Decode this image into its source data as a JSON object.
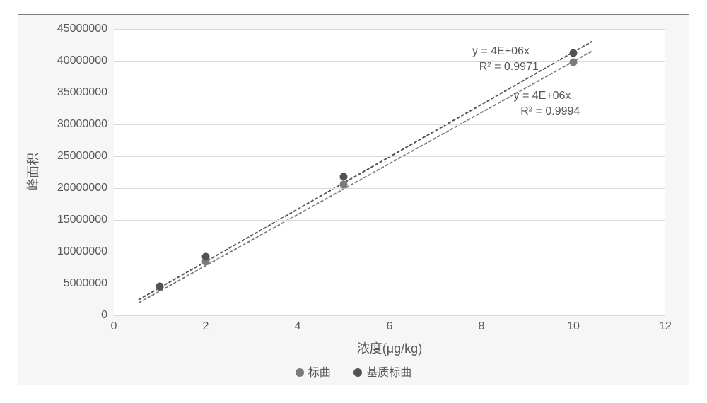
{
  "chart": {
    "type": "scatter-with-trend",
    "background_color": "#f6f6f6",
    "plot_background": "#ffffff",
    "border_color": "#808080",
    "grid_color": "#d9d9d9",
    "tick_color": "#595959",
    "tick_fontsize": 16,
    "label_fontsize": 18,
    "ylabel": "峰面积",
    "xlabel": "浓度(μg/kg)",
    "xlim": [
      0,
      12
    ],
    "ylim": [
      0,
      45000000
    ],
    "xticks": [
      0,
      2,
      4,
      6,
      8,
      10,
      12
    ],
    "yticks": [
      0,
      5000000,
      10000000,
      15000000,
      20000000,
      25000000,
      30000000,
      35000000,
      40000000,
      45000000
    ],
    "marker_size": 11,
    "line_width": 2,
    "dash_pattern": "3 4",
    "series": {
      "biaoqu": {
        "label": "标曲",
        "color": "#7b7b7b",
        "points": [
          {
            "x": 1,
            "y": 4400000
          },
          {
            "x": 2,
            "y": 8400000
          },
          {
            "x": 5,
            "y": 20600000
          },
          {
            "x": 10,
            "y": 39800000
          }
        ],
        "trend_line": {
          "x0": 0.55,
          "y0": 2000000,
          "x1": 10.4,
          "y1": 41500000
        },
        "equation": "y = 4E+06x",
        "r2": "R² = 0.9994"
      },
      "jizhi": {
        "label": "基质标曲",
        "color": "#525252",
        "points": [
          {
            "x": 1,
            "y": 4600000
          },
          {
            "x": 2,
            "y": 9200000
          },
          {
            "x": 5,
            "y": 21800000
          },
          {
            "x": 10,
            "y": 41200000
          }
        ],
        "trend_line": {
          "x0": 0.55,
          "y0": 2500000,
          "x1": 10.4,
          "y1": 43000000
        },
        "equation": "y = 4E+06x",
        "r2": "R² = 0.9971"
      }
    },
    "eq_positions": {
      "jizhi_eq_xy": [
        7.8,
        42500000
      ],
      "jizhi_r2_xy": [
        7.95,
        40000000
      ],
      "biaoqu_eq_xy": [
        8.7,
        35500000
      ],
      "biaoqu_r2_xy": [
        8.85,
        33000000
      ]
    }
  }
}
